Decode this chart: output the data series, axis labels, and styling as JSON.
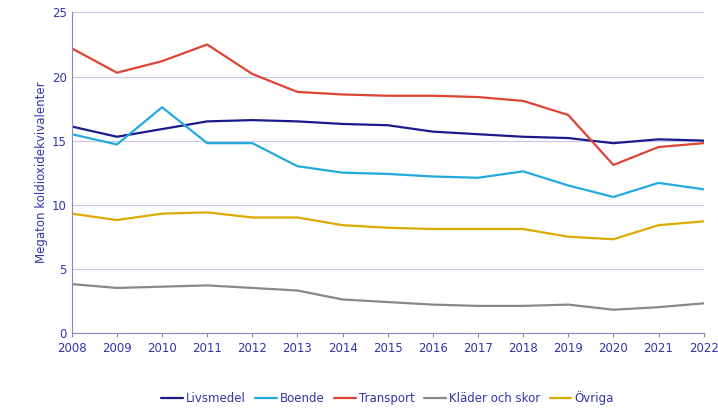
{
  "years": [
    2008,
    2009,
    2010,
    2011,
    2012,
    2013,
    2014,
    2015,
    2016,
    2017,
    2018,
    2019,
    2020,
    2021,
    2022
  ],
  "series": {
    "Livsmedel": [
      16.1,
      15.3,
      15.9,
      16.5,
      16.6,
      16.5,
      16.3,
      16.2,
      15.7,
      15.5,
      15.3,
      15.2,
      14.8,
      15.1,
      15.0
    ],
    "Boende": [
      15.5,
      14.7,
      17.6,
      14.8,
      14.8,
      13.0,
      12.5,
      12.4,
      12.2,
      12.1,
      12.6,
      11.5,
      10.6,
      11.7,
      11.2
    ],
    "Transport": [
      22.2,
      20.3,
      21.2,
      22.5,
      20.2,
      18.8,
      18.6,
      18.5,
      18.5,
      18.4,
      18.1,
      17.0,
      13.1,
      14.5,
      14.8
    ],
    "Kläder och skor": [
      3.8,
      3.5,
      3.6,
      3.7,
      3.5,
      3.3,
      2.6,
      2.4,
      2.2,
      2.1,
      2.1,
      2.2,
      1.8,
      2.0,
      2.3
    ],
    "Övriga": [
      9.3,
      8.8,
      9.3,
      9.4,
      9.0,
      9.0,
      8.4,
      8.2,
      8.1,
      8.1,
      8.1,
      7.5,
      7.3,
      8.4,
      8.7
    ]
  },
  "colors": {
    "Livsmedel": "#1a1a8c",
    "Boende": "#22aadd",
    "Transport": "#dd4433",
    "Kläder och skor": "#888888",
    "Övriga": "#ddaa00"
  },
  "ylabel": "Megaton koldioxidekvivalenter",
  "ylim": [
    0,
    25
  ],
  "yticks": [
    0,
    5,
    10,
    15,
    20,
    25
  ],
  "grid_color": "#c8c8e8",
  "axis_color": "#8888bb",
  "text_color": "#3333aa",
  "legend_order": [
    "Livsmedel",
    "Boende",
    "Transport",
    "Kläder och skor",
    "Övriga"
  ],
  "linewidth": 1.6,
  "tick_fontsize": 8.5,
  "ylabel_fontsize": 8.5,
  "legend_fontsize": 8.5
}
